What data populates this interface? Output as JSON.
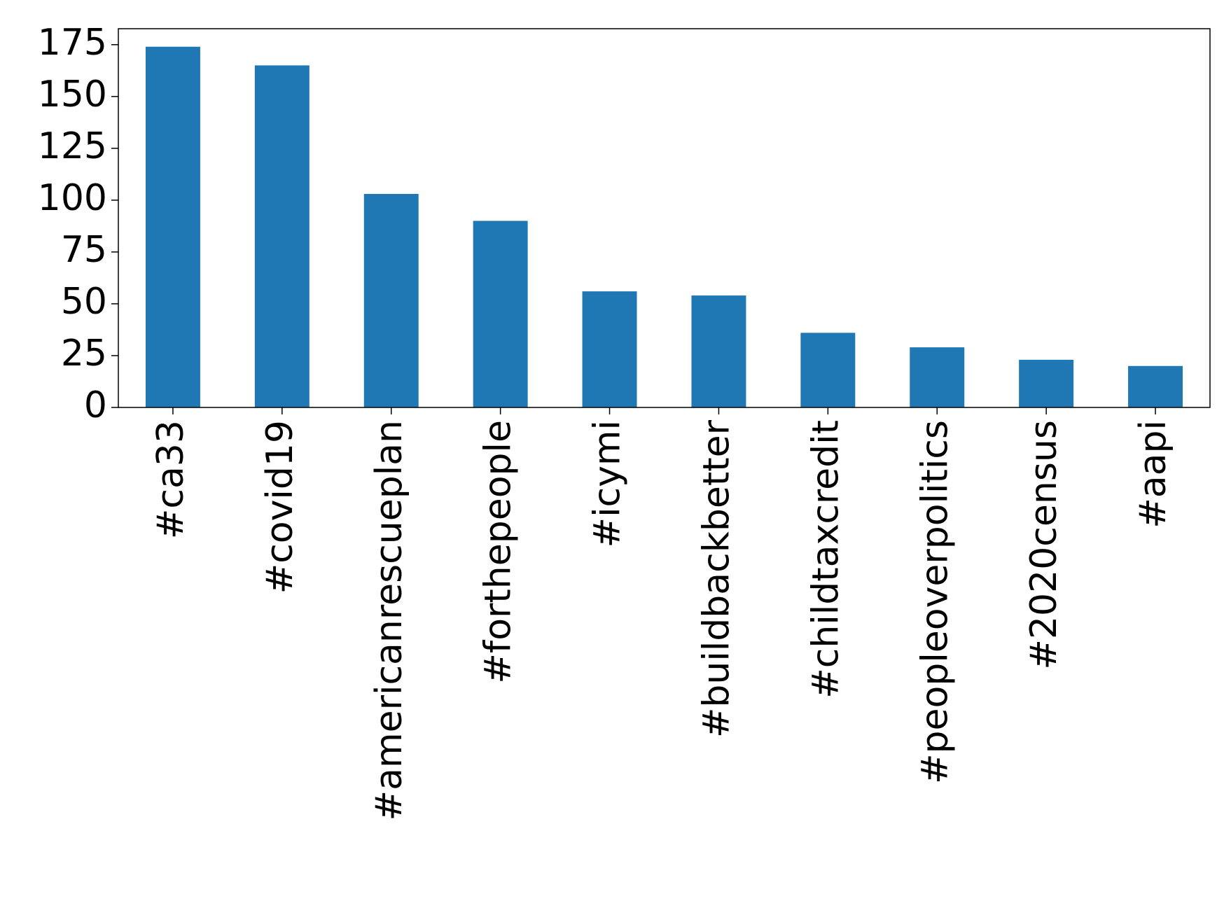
{
  "chart_data": {
    "type": "bar",
    "categories": [
      "#ca33",
      "#covid19",
      "#americanrescueplan",
      "#forthepeople",
      "#icymi",
      "#buildbackbetter",
      "#childtaxcredit",
      "#peopleoverpolitics",
      "#2020census",
      "#aapi"
    ],
    "values": [
      174,
      165,
      103,
      90,
      56,
      54,
      36,
      29,
      23,
      20
    ],
    "color": "#1f77b4",
    "ylim": [
      0,
      182.7
    ],
    "yticks": [
      0,
      25,
      50,
      75,
      100,
      125,
      150,
      175
    ],
    "grid": false
  }
}
